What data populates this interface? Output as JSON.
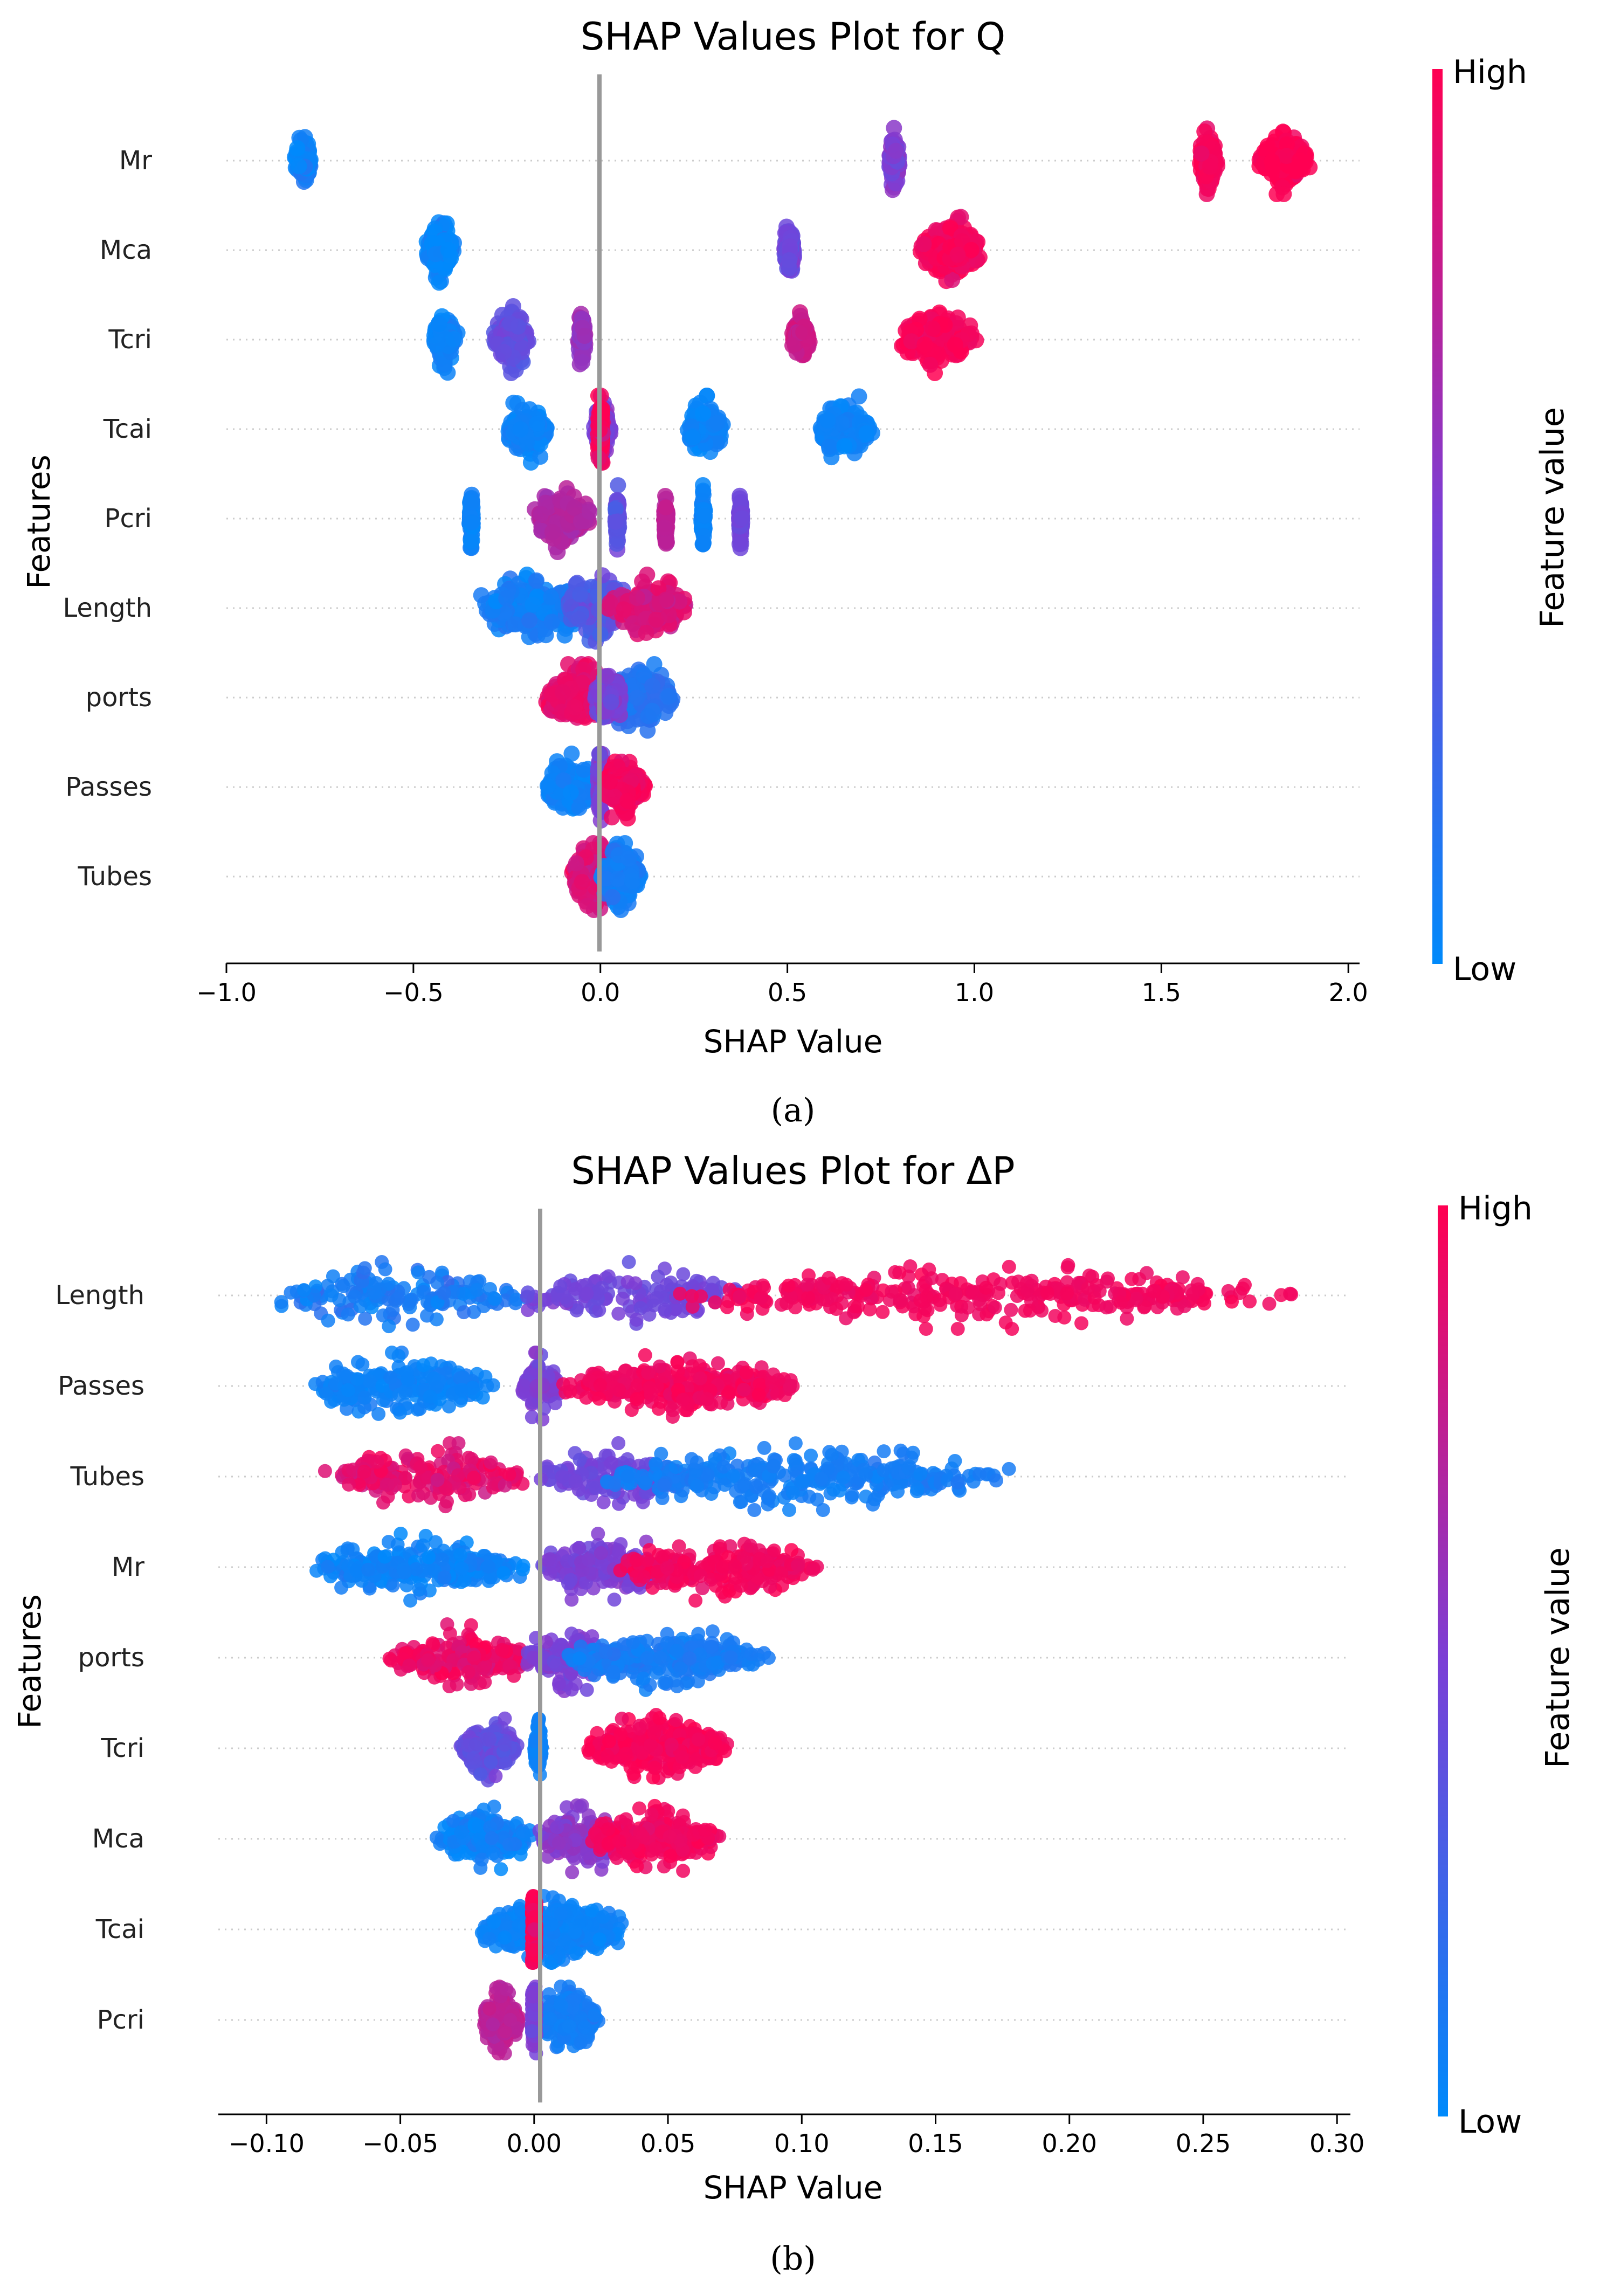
{
  "chart_data": [
    {
      "type": "scatter",
      "subtype": "shap-beeswarm",
      "title": "SHAP Values Plot for Q",
      "xlabel": "SHAP Value",
      "ylabel": "Features",
      "xlim": [
        -1.0,
        2.03
      ],
      "xticks": [
        -1.0,
        -0.5,
        0.0,
        0.5,
        1.0,
        1.5,
        2.0
      ],
      "xtick_labels": [
        "−1.0",
        "−0.5",
        "0.0",
        "0.5",
        "1.0",
        "1.5",
        "2.0"
      ],
      "subfigure_label": "(a)",
      "colorbar": {
        "label": "Feature value",
        "high": "High",
        "low": "Low",
        "colors": [
          "#008afb",
          "#7b3fd6",
          "#ff0052"
        ]
      },
      "features": [
        {
          "name": "Mr",
          "clusters": [
            [
              -0.82,
              -0.77,
              0.05,
              0.06
            ],
            [
              0.77,
              0.8,
              0.5,
              0.045
            ],
            [
              1.6,
              1.65,
              0.97,
              0.035
            ],
            [
              1.76,
              1.9,
              1.0,
              0.03
            ]
          ]
        },
        {
          "name": "Mca",
          "clusters": [
            [
              -0.47,
              -0.39,
              0.03,
              0.055
            ],
            [
              0.49,
              0.52,
              0.45,
              0.045
            ],
            [
              0.85,
              1.02,
              0.96,
              0.035
            ]
          ]
        },
        {
          "name": "Tcri",
          "clusters": [
            [
              -0.45,
              -0.38,
              0.05,
              0.03
            ],
            [
              -0.29,
              -0.19,
              0.4,
              0.05
            ],
            [
              -0.06,
              -0.04,
              0.6,
              0.03
            ],
            [
              0.51,
              0.56,
              0.8,
              0.03
            ],
            [
              0.8,
              1.01,
              0.97,
              0.025
            ]
          ]
        },
        {
          "name": "Tcai",
          "clusters": [
            [
              -0.26,
              -0.13,
              0.05,
              0.025
            ],
            [
              -0.02,
              0.03,
              0.5,
              0.05
            ],
            [
              0.0,
              0.0,
              0.97,
              0.07
            ],
            [
              0.23,
              0.33,
              0.05,
              0.02
            ],
            [
              0.58,
              0.73,
              0.05,
              0.02
            ]
          ]
        },
        {
          "name": "Pcri",
          "clusters": [
            [
              -0.35,
              -0.34,
              0.05,
              0.02
            ],
            [
              -0.18,
              -0.02,
              0.7,
              0.03
            ],
            [
              0.04,
              0.05,
              0.4,
              0.05
            ],
            [
              0.17,
              0.18,
              0.75,
              0.02
            ],
            [
              0.27,
              0.28,
              0.05,
              0.02
            ],
            [
              0.37,
              0.38,
              0.45,
              0.02
            ]
          ]
        },
        {
          "name": "Length",
          "clusters": [
            [
              -0.34,
              0.0,
              0.08,
              0.04
            ],
            [
              -0.1,
              0.08,
              0.35,
              0.05
            ],
            [
              0.02,
              0.24,
              0.85,
              0.04
            ]
          ]
        },
        {
          "name": "ports",
          "clusters": [
            [
              -0.15,
              0.04,
              0.9,
              0.04
            ],
            [
              0.0,
              0.2,
              0.15,
              0.03
            ],
            [
              -0.02,
              0.06,
              0.5,
              0.05
            ]
          ]
        },
        {
          "name": "Passes",
          "clusters": [
            [
              -0.15,
              -0.01,
              0.05,
              0.025
            ],
            [
              0.0,
              0.0,
              0.5,
              0.06
            ],
            [
              0.01,
              0.12,
              0.95,
              0.03
            ]
          ]
        },
        {
          "name": "Tubes",
          "clusters": [
            [
              -0.08,
              0.05,
              0.85,
              0.045
            ],
            [
              0.0,
              0.11,
              0.08,
              0.04
            ]
          ]
        }
      ]
    },
    {
      "type": "scatter",
      "subtype": "shap-beeswarm",
      "title": "SHAP Values Plot for ΔP",
      "xlabel": "SHAP Value",
      "ylabel": "Features",
      "xlim": [
        -0.118,
        0.305
      ],
      "xticks": [
        -0.1,
        -0.05,
        0.0,
        0.05,
        0.1,
        0.15,
        0.2,
        0.25,
        0.3
      ],
      "xtick_labels": [
        "−0.10",
        "−0.05",
        "0.00",
        "0.05",
        "0.10",
        "0.15",
        "0.20",
        "0.25",
        "0.30"
      ],
      "subfigure_label": "(b)",
      "colorbar": {
        "label": "Feature value",
        "high": "High",
        "low": "Low",
        "colors": [
          "#008afb",
          "#7b3fd6",
          "#ff0052"
        ]
      },
      "features": [
        {
          "name": "Length",
          "clusters": [
            [
              -0.1,
              0.0,
              0.1,
              0.04
            ],
            [
              -0.01,
              0.08,
              0.45,
              0.035
            ],
            [
              0.05,
              0.29,
              0.95,
              0.015
            ]
          ]
        },
        {
          "name": "Passes",
          "clusters": [
            [
              -0.085,
              -0.015,
              0.05,
              0.025
            ],
            [
              -0.005,
              0.01,
              0.5,
              0.05
            ],
            [
              0.01,
              0.1,
              0.95,
              0.025
            ]
          ]
        },
        {
          "name": "Tubes",
          "clusters": [
            [
              -0.08,
              -0.0,
              0.9,
              0.045
            ],
            [
              0.0,
              0.06,
              0.45,
              0.03
            ],
            [
              0.02,
              0.18,
              0.08,
              0.02
            ]
          ]
        },
        {
          "name": "Mr",
          "clusters": [
            [
              -0.085,
              0.0,
              0.05,
              0.035
            ],
            [
              0.0,
              0.05,
              0.5,
              0.035
            ],
            [
              0.03,
              0.11,
              0.95,
              0.025
            ]
          ]
        },
        {
          "name": "ports",
          "clusters": [
            [
              -0.055,
              0.0,
              0.92,
              0.04
            ],
            [
              -0.005,
              0.03,
              0.5,
              0.035
            ],
            [
              0.01,
              0.09,
              0.1,
              0.025
            ]
          ]
        },
        {
          "name": "Tcri",
          "clusters": [
            [
              -0.028,
              -0.005,
              0.4,
              0.04
            ],
            [
              0.018,
              0.073,
              0.97,
              0.02
            ],
            [
              0.0,
              0.003,
              0.05,
              0.01
            ]
          ]
        },
        {
          "name": "Mca",
          "clusters": [
            [
              -0.037,
              0.0,
              0.05,
              0.045
            ],
            [
              0.0,
              0.035,
              0.55,
              0.035
            ],
            [
              0.02,
              0.07,
              0.95,
              0.025
            ]
          ]
        },
        {
          "name": "Tcai",
          "clusters": [
            [
              -0.02,
              0.035,
              0.05,
              0.02
            ],
            [
              0.0,
              0.0,
              0.97,
              0.06
            ]
          ]
        },
        {
          "name": "Pcri",
          "clusters": [
            [
              -0.02,
              -0.005,
              0.75,
              0.025
            ],
            [
              0.0,
              0.025,
              0.08,
              0.02
            ],
            [
              0.0,
              0.0,
              0.5,
              0.03
            ]
          ]
        }
      ]
    }
  ]
}
